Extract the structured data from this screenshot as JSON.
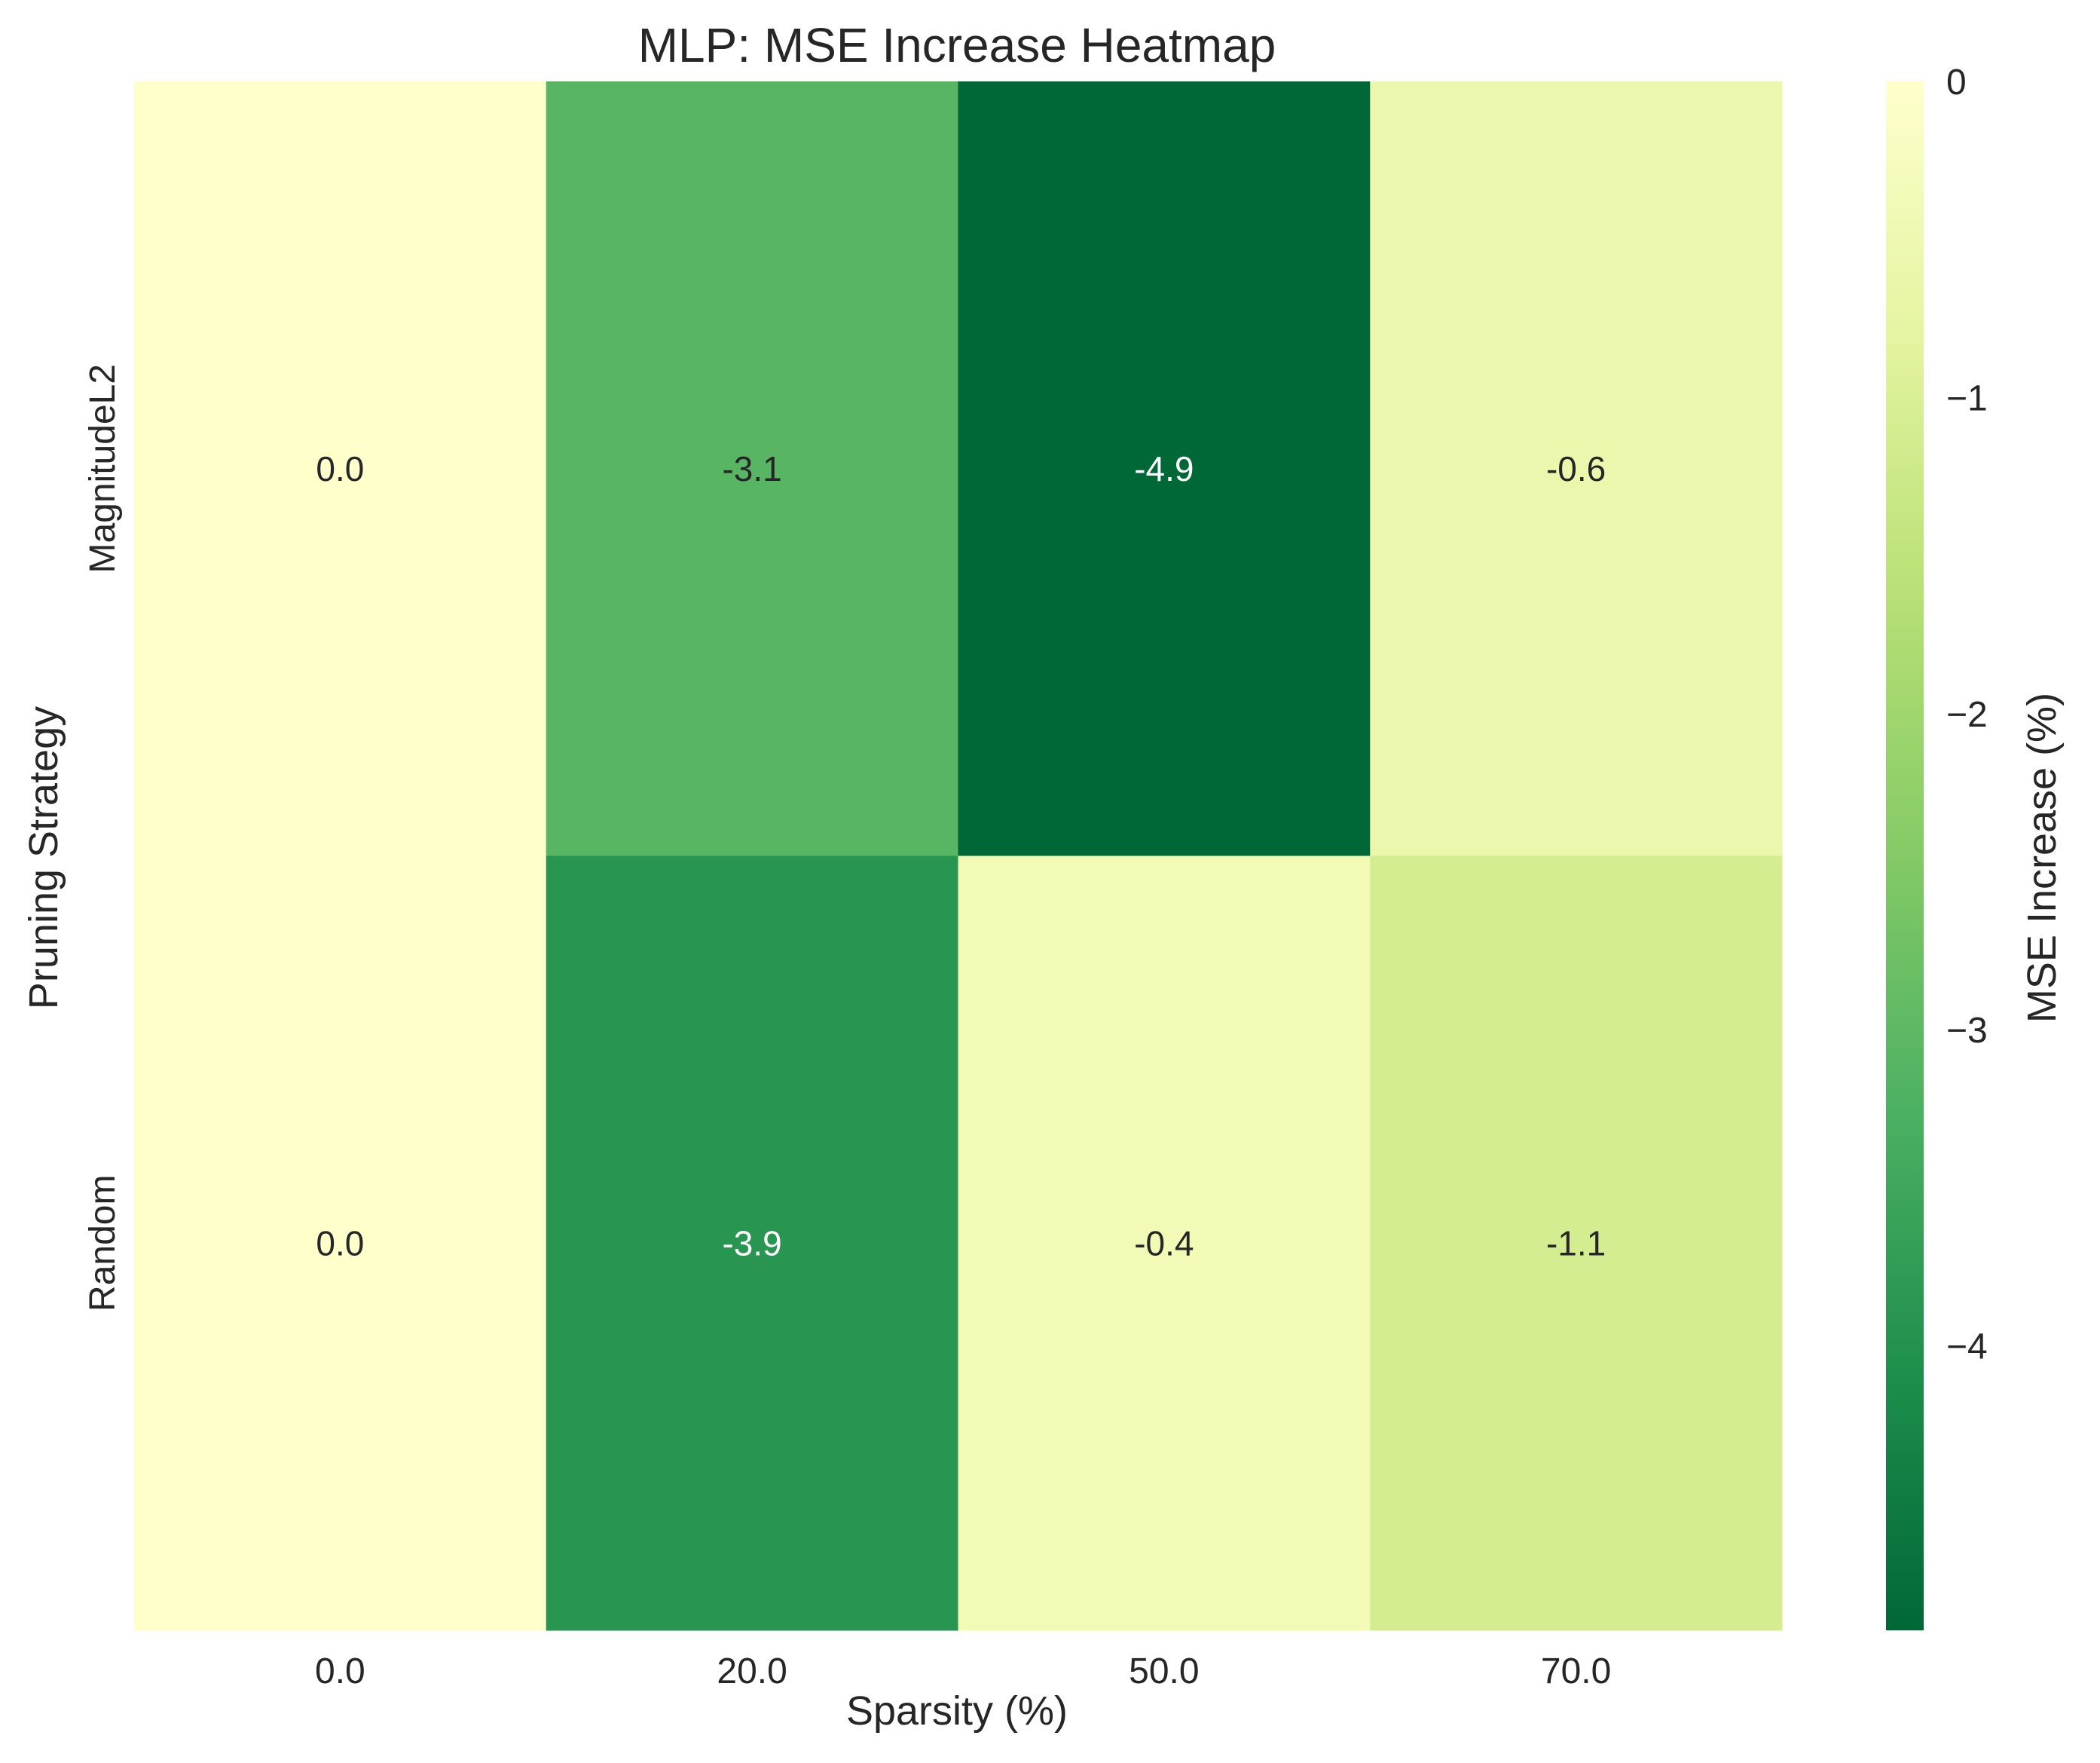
{
  "chart_data": {
    "type": "heatmap",
    "title": "MLP: MSE Increase Heatmap",
    "xlabel": "Sparsity (%)",
    "ylabel": "Pruning Strategy",
    "x_categories": [
      "0.0",
      "20.0",
      "50.0",
      "70.0"
    ],
    "y_categories": [
      "MagnitudeL2",
      "Random"
    ],
    "values": [
      [
        0.0,
        -3.1,
        -4.9,
        -0.6
      ],
      [
        0.0,
        -3.9,
        -0.4,
        -1.1
      ]
    ],
    "cell_labels": [
      [
        "0.0",
        "-3.1",
        "-4.9",
        "-0.6"
      ],
      [
        "0.0",
        "-3.9",
        "-0.4",
        "-1.1"
      ]
    ],
    "colorbar": {
      "label": "MSE Increase (%)",
      "range": [
        -4.9,
        0
      ],
      "ticks": [
        0,
        -1,
        -2,
        -3,
        -4
      ],
      "tick_labels": [
        "0",
        "−1",
        "−2",
        "−3",
        "−4"
      ],
      "colormap": "YlGn_r",
      "stops": [
        "#006837",
        "#1e8f4c",
        "#4bb062",
        "#84ca66",
        "#b7e075",
        "#e4f4a0",
        "#ffffcc"
      ]
    },
    "grid": false
  }
}
